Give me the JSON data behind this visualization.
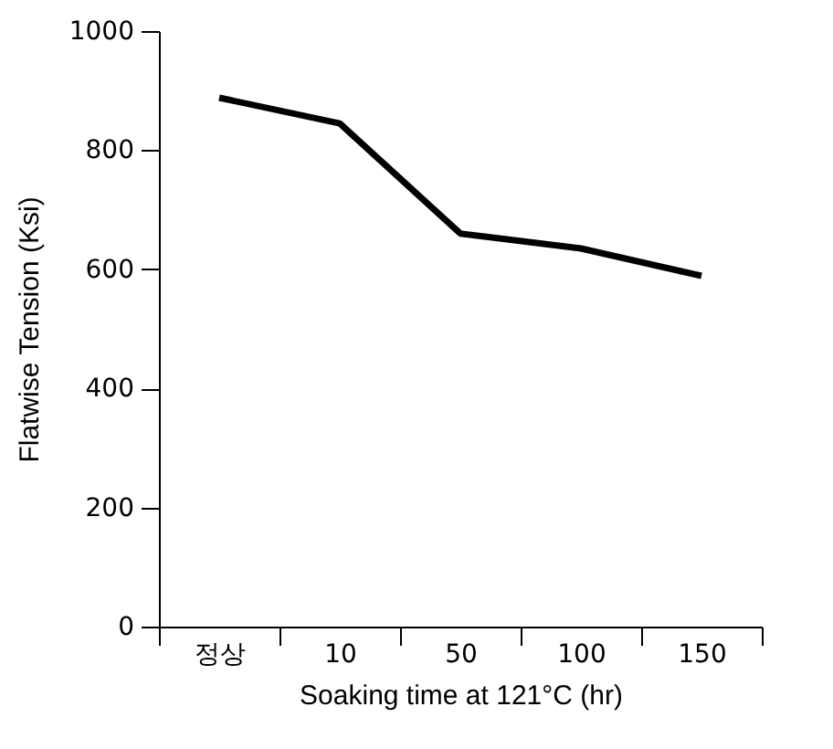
{
  "chart_data": {
    "type": "line",
    "xlabel": "Soaking time at 121°C (hr)",
    "ylabel": "Flatwise Tension (Ksi)",
    "categories": [
      "정상",
      "10",
      "50",
      "100",
      "150"
    ],
    "series": [
      {
        "color": "#000000",
        "values": [
          888,
          845,
          660,
          635,
          589
        ]
      }
    ],
    "ylim": [
      0,
      1000
    ],
    "yticks": [
      0,
      200,
      400,
      600,
      800,
      1000
    ],
    "grid": false,
    "legend": false,
    "marker": "none",
    "line_style": "solid"
  }
}
